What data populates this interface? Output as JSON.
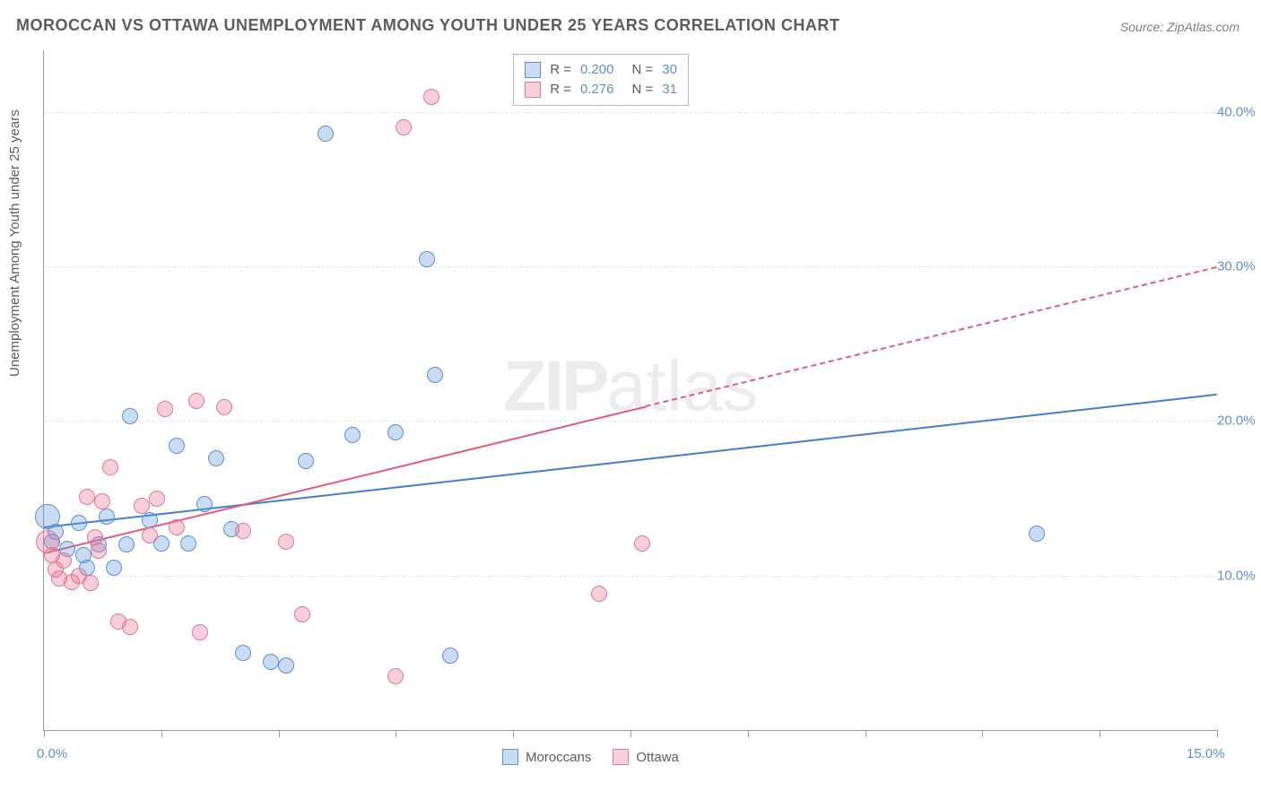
{
  "title": "MOROCCAN VS OTTAWA UNEMPLOYMENT AMONG YOUTH UNDER 25 YEARS CORRELATION CHART",
  "source": "Source: ZipAtlas.com",
  "ylabel": "Unemployment Among Youth under 25 years",
  "watermark_a": "ZIP",
  "watermark_b": "atlas",
  "chart": {
    "type": "scatter",
    "xlim": [
      0,
      15
    ],
    "ylim": [
      0,
      44
    ],
    "x_ticks": [
      0,
      1.5,
      3.0,
      4.5,
      6.0,
      7.5,
      9.0,
      10.5,
      12.0,
      13.5,
      15.0
    ],
    "x_tick_labels": {
      "0": "0.0%",
      "15": "15.0%"
    },
    "y_gridlines": [
      10,
      20,
      30,
      40
    ],
    "y_tick_labels": {
      "10": "10.0%",
      "20": "20.0%",
      "30": "30.0%",
      "40": "40.0%"
    },
    "grid_color": "#e3e3e3",
    "axis_color": "#9a9a9a",
    "label_color": "#5b8fd8",
    "background_color": "#ffffff",
    "title_color": "#5c5c5c",
    "title_fontsize": 18,
    "label_fontsize": 15,
    "dot_radius": 9,
    "dot_stroke_width": 1.5,
    "dot_fill_opacity": 0.35,
    "series": [
      {
        "name": "Moroccans",
        "color": "#3f7fd1",
        "fill": "rgba(99,155,219,0.35)",
        "stroke": "#5b8fd8",
        "R": "0.200",
        "N": "30",
        "trend": {
          "x0": 0,
          "y0": 13.2,
          "x1": 15,
          "y1": 21.8,
          "dash_after_x": null,
          "width": 2.5
        },
        "points": [
          {
            "x": 0.05,
            "y": 13.8,
            "r": 14
          },
          {
            "x": 0.1,
            "y": 12.2
          },
          {
            "x": 0.15,
            "y": 12.8
          },
          {
            "x": 0.3,
            "y": 11.7
          },
          {
            "x": 0.45,
            "y": 13.4
          },
          {
            "x": 0.5,
            "y": 11.3
          },
          {
            "x": 0.55,
            "y": 10.5
          },
          {
            "x": 0.7,
            "y": 12.0
          },
          {
            "x": 0.8,
            "y": 13.8
          },
          {
            "x": 0.9,
            "y": 10.5
          },
          {
            "x": 1.05,
            "y": 12.0
          },
          {
            "x": 1.1,
            "y": 20.3
          },
          {
            "x": 1.35,
            "y": 13.6
          },
          {
            "x": 1.5,
            "y": 12.1
          },
          {
            "x": 1.7,
            "y": 18.4
          },
          {
            "x": 1.85,
            "y": 12.1
          },
          {
            "x": 2.05,
            "y": 14.6
          },
          {
            "x": 2.2,
            "y": 17.6
          },
          {
            "x": 2.4,
            "y": 13.0
          },
          {
            "x": 2.55,
            "y": 5.0
          },
          {
            "x": 2.9,
            "y": 4.4
          },
          {
            "x": 3.1,
            "y": 4.2
          },
          {
            "x": 3.35,
            "y": 17.4
          },
          {
            "x": 3.6,
            "y": 38.6
          },
          {
            "x": 3.95,
            "y": 19.1
          },
          {
            "x": 4.5,
            "y": 19.3
          },
          {
            "x": 4.9,
            "y": 30.5
          },
          {
            "x": 5.0,
            "y": 23.0
          },
          {
            "x": 5.2,
            "y": 4.8
          },
          {
            "x": 12.7,
            "y": 12.7
          }
        ]
      },
      {
        "name": "Ottawa",
        "color": "#e65a7a",
        "fill": "rgba(232,118,146,0.35)",
        "stroke": "#e27893",
        "R": "0.276",
        "N": "31",
        "trend": {
          "x0": 0,
          "y0": 11.5,
          "x1": 15,
          "y1": 30.0,
          "dash_after_x": 7.7,
          "width": 2
        },
        "points": [
          {
            "x": 0.05,
            "y": 12.2,
            "r": 13
          },
          {
            "x": 0.1,
            "y": 11.3
          },
          {
            "x": 0.15,
            "y": 10.4
          },
          {
            "x": 0.2,
            "y": 9.8
          },
          {
            "x": 0.25,
            "y": 11.0
          },
          {
            "x": 0.35,
            "y": 9.6
          },
          {
            "x": 0.45,
            "y": 10.0
          },
          {
            "x": 0.55,
            "y": 15.1
          },
          {
            "x": 0.6,
            "y": 9.5
          },
          {
            "x": 0.65,
            "y": 12.5
          },
          {
            "x": 0.7,
            "y": 11.6
          },
          {
            "x": 0.75,
            "y": 14.8
          },
          {
            "x": 0.85,
            "y": 17.0
          },
          {
            "x": 0.95,
            "y": 7.0
          },
          {
            "x": 1.1,
            "y": 6.7
          },
          {
            "x": 1.25,
            "y": 14.5
          },
          {
            "x": 1.35,
            "y": 12.6
          },
          {
            "x": 1.45,
            "y": 15.0
          },
          {
            "x": 1.55,
            "y": 20.8
          },
          {
            "x": 1.7,
            "y": 13.1
          },
          {
            "x": 1.95,
            "y": 21.3
          },
          {
            "x": 2.0,
            "y": 6.3
          },
          {
            "x": 2.3,
            "y": 20.9
          },
          {
            "x": 2.55,
            "y": 12.9
          },
          {
            "x": 3.1,
            "y": 12.2
          },
          {
            "x": 3.3,
            "y": 7.5
          },
          {
            "x": 4.5,
            "y": 3.5
          },
          {
            "x": 4.6,
            "y": 39.0
          },
          {
            "x": 4.95,
            "y": 41.0
          },
          {
            "x": 7.1,
            "y": 8.8
          },
          {
            "x": 7.65,
            "y": 12.1
          }
        ]
      }
    ]
  },
  "legend_top": {
    "rows": [
      {
        "swatch": 0,
        "r_label": "R =",
        "r_val": "0.200",
        "n_label": "N =",
        "n_val": "30"
      },
      {
        "swatch": 1,
        "r_label": "R =",
        "r_val": " 0.276",
        "n_label": "N =",
        "n_val": " 31"
      }
    ]
  },
  "legend_bottom": {
    "items": [
      "Moroccans",
      "Ottawa"
    ]
  }
}
